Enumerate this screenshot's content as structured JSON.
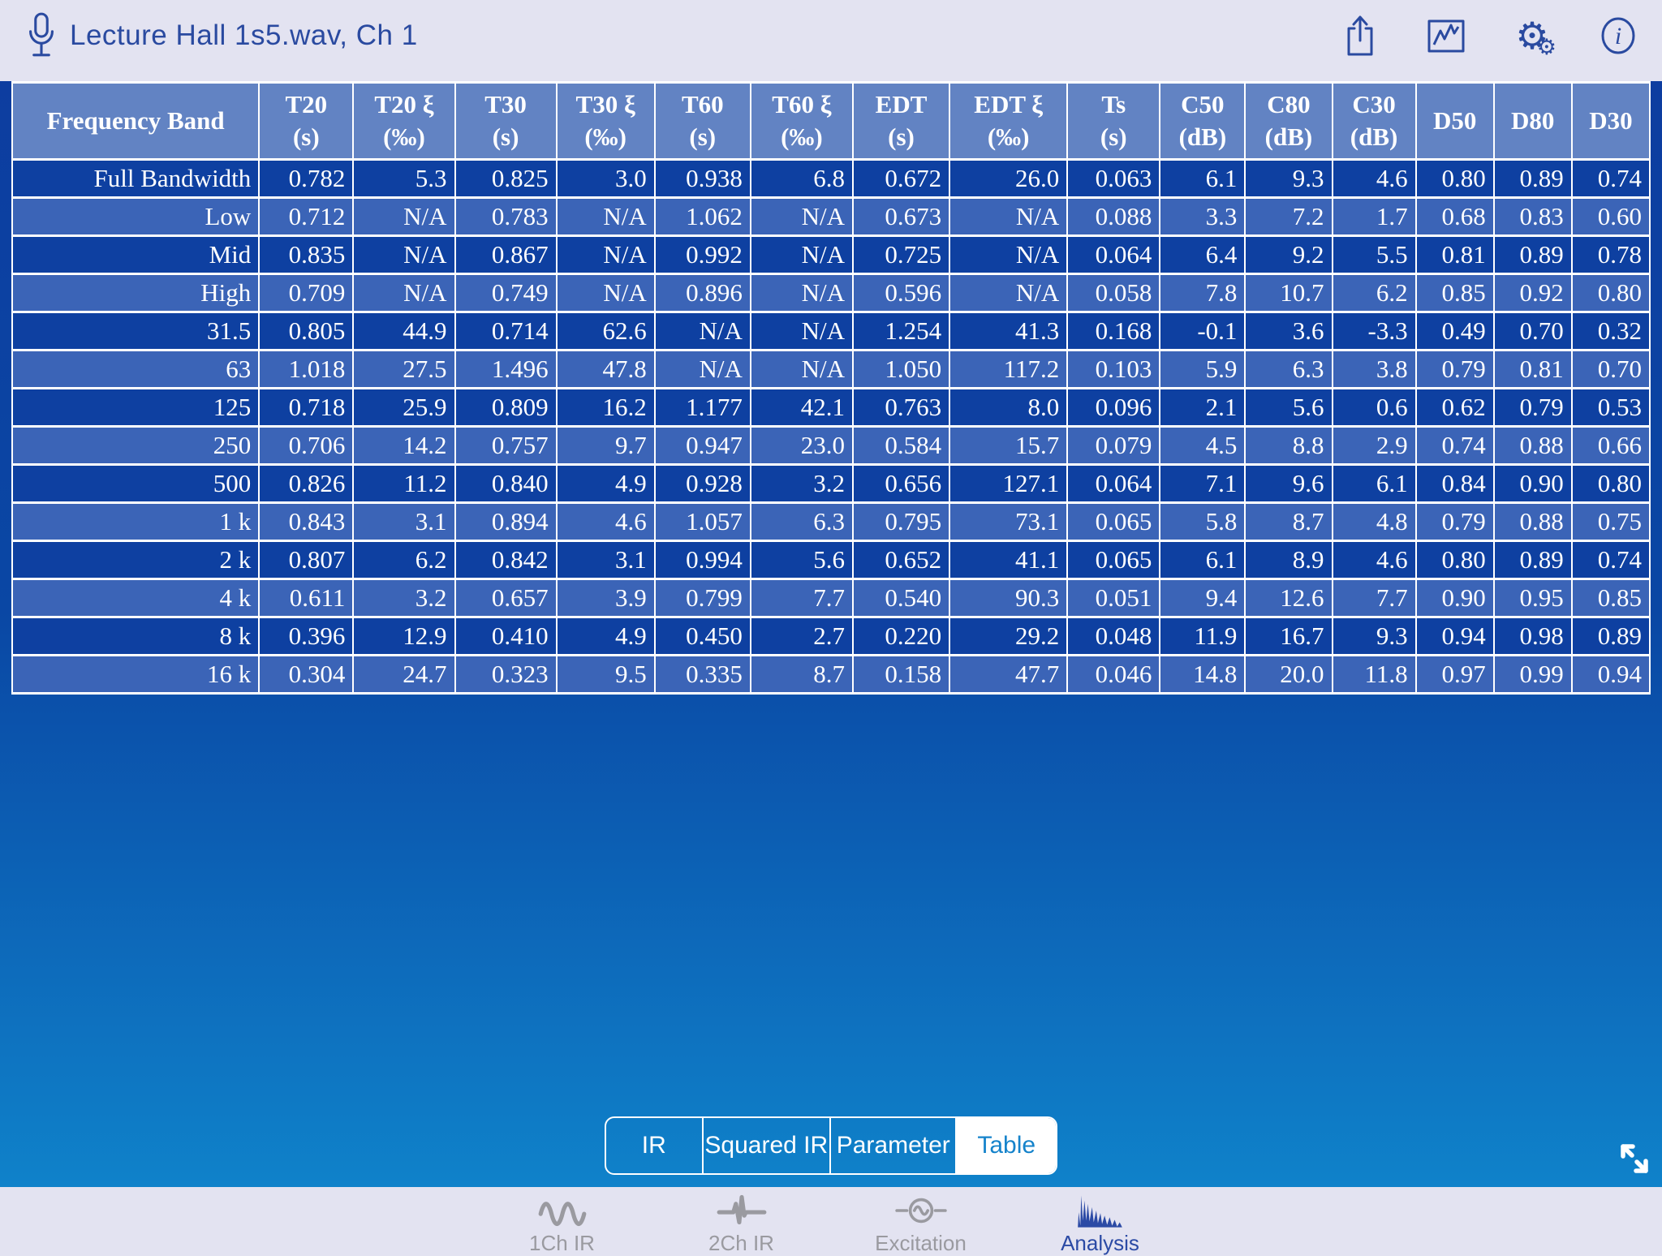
{
  "topbar": {
    "title": "Lecture Hall 1s5.wav, Ch 1",
    "icons": [
      "share-icon",
      "chart-icon",
      "settings-icon",
      "info-icon"
    ]
  },
  "table": {
    "columns": [
      {
        "label": "Frequency Band",
        "unit": ""
      },
      {
        "label": "T20",
        "unit": "(s)"
      },
      {
        "label": "T20 ξ",
        "unit": "(‰)"
      },
      {
        "label": "T30",
        "unit": "(s)"
      },
      {
        "label": "T30 ξ",
        "unit": "(‰)"
      },
      {
        "label": "T60",
        "unit": "(s)"
      },
      {
        "label": "T60 ξ",
        "unit": "(‰)"
      },
      {
        "label": "EDT",
        "unit": "(s)"
      },
      {
        "label": "EDT ξ",
        "unit": "(‰)"
      },
      {
        "label": "Ts",
        "unit": "(s)"
      },
      {
        "label": "C50",
        "unit": "(dB)"
      },
      {
        "label": "C80",
        "unit": "(dB)"
      },
      {
        "label": "C30",
        "unit": "(dB)"
      },
      {
        "label": "D50",
        "unit": ""
      },
      {
        "label": "D80",
        "unit": ""
      },
      {
        "label": "D30",
        "unit": ""
      }
    ],
    "rows": [
      {
        "band": "Full Bandwidth",
        "values": [
          "0.782",
          "5.3",
          "0.825",
          "3.0",
          "0.938",
          "6.8",
          "0.672",
          "26.0",
          "0.063",
          "6.1",
          "9.3",
          "4.6",
          "0.80",
          "0.89",
          "0.74"
        ]
      },
      {
        "band": "Low",
        "values": [
          "0.712",
          "N/A",
          "0.783",
          "N/A",
          "1.062",
          "N/A",
          "0.673",
          "N/A",
          "0.088",
          "3.3",
          "7.2",
          "1.7",
          "0.68",
          "0.83",
          "0.60"
        ]
      },
      {
        "band": "Mid",
        "values": [
          "0.835",
          "N/A",
          "0.867",
          "N/A",
          "0.992",
          "N/A",
          "0.725",
          "N/A",
          "0.064",
          "6.4",
          "9.2",
          "5.5",
          "0.81",
          "0.89",
          "0.78"
        ]
      },
      {
        "band": "High",
        "values": [
          "0.709",
          "N/A",
          "0.749",
          "N/A",
          "0.896",
          "N/A",
          "0.596",
          "N/A",
          "0.058",
          "7.8",
          "10.7",
          "6.2",
          "0.85",
          "0.92",
          "0.80"
        ]
      },
      {
        "band": "31.5",
        "values": [
          "0.805",
          "44.9",
          "0.714",
          "62.6",
          "N/A",
          "N/A",
          "1.254",
          "41.3",
          "0.168",
          "-0.1",
          "3.6",
          "-3.3",
          "0.49",
          "0.70",
          "0.32"
        ]
      },
      {
        "band": "63",
        "values": [
          "1.018",
          "27.5",
          "1.496",
          "47.8",
          "N/A",
          "N/A",
          "1.050",
          "117.2",
          "0.103",
          "5.9",
          "6.3",
          "3.8",
          "0.79",
          "0.81",
          "0.70"
        ]
      },
      {
        "band": "125",
        "values": [
          "0.718",
          "25.9",
          "0.809",
          "16.2",
          "1.177",
          "42.1",
          "0.763",
          "8.0",
          "0.096",
          "2.1",
          "5.6",
          "0.6",
          "0.62",
          "0.79",
          "0.53"
        ]
      },
      {
        "band": "250",
        "values": [
          "0.706",
          "14.2",
          "0.757",
          "9.7",
          "0.947",
          "23.0",
          "0.584",
          "15.7",
          "0.079",
          "4.5",
          "8.8",
          "2.9",
          "0.74",
          "0.88",
          "0.66"
        ]
      },
      {
        "band": "500",
        "values": [
          "0.826",
          "11.2",
          "0.840",
          "4.9",
          "0.928",
          "3.2",
          "0.656",
          "127.1",
          "0.064",
          "7.1",
          "9.6",
          "6.1",
          "0.84",
          "0.90",
          "0.80"
        ]
      },
      {
        "band": "1 k",
        "values": [
          "0.843",
          "3.1",
          "0.894",
          "4.6",
          "1.057",
          "6.3",
          "0.795",
          "73.1",
          "0.065",
          "5.8",
          "8.7",
          "4.8",
          "0.79",
          "0.88",
          "0.75"
        ]
      },
      {
        "band": "2 k",
        "values": [
          "0.807",
          "6.2",
          "0.842",
          "3.1",
          "0.994",
          "5.6",
          "0.652",
          "41.1",
          "0.065",
          "6.1",
          "8.9",
          "4.6",
          "0.80",
          "0.89",
          "0.74"
        ]
      },
      {
        "band": "4 k",
        "values": [
          "0.611",
          "3.2",
          "0.657",
          "3.9",
          "0.799",
          "7.7",
          "0.540",
          "90.3",
          "0.051",
          "9.4",
          "12.6",
          "7.7",
          "0.90",
          "0.95",
          "0.85"
        ]
      },
      {
        "band": "8 k",
        "values": [
          "0.396",
          "12.9",
          "0.410",
          "4.9",
          "0.450",
          "2.7",
          "0.220",
          "29.2",
          "0.048",
          "11.9",
          "16.7",
          "9.3",
          "0.94",
          "0.98",
          "0.89"
        ]
      },
      {
        "band": "16 k",
        "values": [
          "0.304",
          "24.7",
          "0.323",
          "9.5",
          "0.335",
          "8.7",
          "0.158",
          "47.7",
          "0.046",
          "14.8",
          "20.0",
          "11.8",
          "0.97",
          "0.99",
          "0.94"
        ]
      }
    ]
  },
  "view_switcher": {
    "options": [
      "IR",
      "Squared IR",
      "Parameter",
      "Table"
    ],
    "selected": "Table"
  },
  "tabbar": {
    "items": [
      {
        "label": "1Ch IR",
        "icon": "sine-wave-icon"
      },
      {
        "label": "2Ch IR",
        "icon": "impulse-icon"
      },
      {
        "label": "Excitation",
        "icon": "excitation-icon"
      },
      {
        "label": "Analysis",
        "icon": "decay-waveform-icon"
      }
    ],
    "active": "Analysis"
  },
  "colors": {
    "accent_blue": "#2a4aa0",
    "table_header_bg": "#6283c3",
    "row_dark": "#0e40a1",
    "row_light": "#3b64b7",
    "selected_segment_text": "#1583cb",
    "inactive_tab": "#9a9aa0",
    "bg_gradient_top": "#0d3da0",
    "bg_gradient_bottom": "#0f82ca"
  }
}
